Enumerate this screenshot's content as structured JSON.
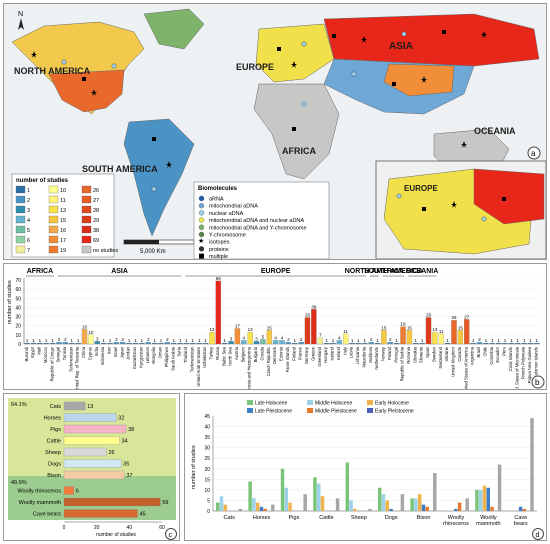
{
  "map": {
    "compass": "N",
    "continents": [
      "NORTH AMERICA",
      "EUROPE",
      "ASIA",
      "AFRICA",
      "SOUTH AMERICA",
      "OCEANIA"
    ],
    "inset_label": "EUROPE",
    "panel_letter": "a",
    "scale_label": "5,000 Km",
    "legend_studies_title": "number of studies",
    "studies_legend": [
      {
        "label": "1",
        "color": "#2d6ea6"
      },
      {
        "label": "2",
        "color": "#4a93c4"
      },
      {
        "label": "3",
        "color": "#2f8cae"
      },
      {
        "label": "4",
        "color": "#62b3cf"
      },
      {
        "label": "5",
        "color": "#6dbfa6"
      },
      {
        "label": "6",
        "color": "#8fd3a5"
      },
      {
        "label": "7",
        "color": "#f4f09a"
      },
      {
        "label": "10",
        "color": "#ffff8f"
      },
      {
        "label": "11",
        "color": "#fff37a"
      },
      {
        "label": "13",
        "color": "#f7e24a"
      },
      {
        "label": "15",
        "color": "#f5c842"
      },
      {
        "label": "16",
        "color": "#f2a94b"
      },
      {
        "label": "17",
        "color": "#f08e3a"
      },
      {
        "label": "19",
        "color": "#ec7c30"
      },
      {
        "label": "26",
        "color": "#e8672a"
      },
      {
        "label": "27",
        "color": "#e55a24"
      },
      {
        "label": "28",
        "color": "#e04a1f"
      },
      {
        "label": "29",
        "color": "#dc3c1c"
      },
      {
        "label": "38",
        "color": "#d92f1a"
      },
      {
        "label": "69",
        "color": "#e8271b"
      },
      {
        "label": "no studies",
        "color": "#c7c7c7"
      }
    ],
    "legend_biomolecules_title": "Biomolecules",
    "biomolecules_legend": [
      {
        "label": "aRNA",
        "symbol": "circle",
        "color": "#1f5fb0"
      },
      {
        "label": "mitochondrial aDNA",
        "symbol": "circle",
        "color": "#6fa8d6"
      },
      {
        "label": "nuclear aDNA",
        "symbol": "circle",
        "color": "#9bd0e8"
      },
      {
        "label": "mitochondrial aDNA and nuclear aDNA",
        "symbol": "circle",
        "color": "#e8e84d"
      },
      {
        "label": "mitochondrial aDNA and Y-chromosome",
        "symbol": "circle",
        "color": "#7db36a"
      },
      {
        "label": "Y-chromosome",
        "symbol": "circle",
        "color": "#5c8a46"
      },
      {
        "label": "isotopes",
        "symbol": "star",
        "color": "#000000"
      },
      {
        "label": "proteins",
        "symbol": "circle-dark",
        "color": "#333333"
      },
      {
        "label": "multiple",
        "symbol": "square",
        "color": "#000000"
      }
    ]
  },
  "chart_data": [
    {
      "type": "bar",
      "panel_letter": "b",
      "ylabel": "number of studies",
      "ylim": [
        0,
        70
      ],
      "yticks": [
        0,
        10,
        20,
        30,
        40,
        50,
        60,
        70
      ],
      "regions": [
        {
          "label": "AFRICA",
          "from": 0,
          "to": 4
        },
        {
          "label": "ASIA",
          "from": 5,
          "to": 24
        },
        {
          "label": "EUROPE",
          "from": 25,
          "to": 53
        },
        {
          "label": "NORTH AMERICA",
          "from": 54,
          "to": 55
        },
        {
          "label": "SOUTH AMERICA",
          "from": 56,
          "to": 59
        },
        {
          "label": "OCEANIA",
          "from": 60,
          "to": 64
        }
      ],
      "categories": [
        "Burundi",
        "Egypt",
        "Mali",
        "Morocco",
        "Republic of Congo",
        "Senegal",
        "Tunisia",
        "Turkmenistan",
        "United Rep. of Tanzania",
        "China",
        "Cyprus",
        "India",
        "Indonesia",
        "Iran",
        "Israel",
        "Japan",
        "Jordan",
        "Kazakhstan",
        "Kyrgyzstan",
        "Lebanon",
        "Mongolia",
        "Oman",
        "Philippines",
        "Saudi Arabia",
        "Syria",
        "Thailand",
        "Turkmenistan",
        "United Arab Emirates",
        "Uzbekistan",
        "Turkey",
        "Russia",
        "Baltic Sea",
        "North Sea",
        "Austria",
        "Belgium",
        "Bosnia and Herzegovina",
        "Bulgaria",
        "Croatia",
        "Czech Republic",
        "Denmark",
        "Estonia",
        "Faroe Islands",
        "Finland",
        "France",
        "Germany",
        "Greece",
        "Greenland",
        "Hungary",
        "Iceland",
        "Ireland",
        "Italy",
        "Latvia",
        "Lithuania",
        "Macedonia",
        "Moldova",
        "Netherlands",
        "Norway",
        "Poland",
        "Portugal",
        "Republic of Serbia",
        "Romania",
        "Slovakia",
        "Slovenia",
        "Spain",
        "Sweden",
        "Switzerland",
        "Ukraine",
        "United Kingdom",
        "Canada",
        "United States of America",
        "Argentina",
        "Brazil",
        "Chile",
        "Colombia",
        "Ecuador",
        "Peru",
        "Cook Islands",
        "Fed. States of Micronesia",
        "French Polynesia",
        "Papua New Guinea",
        "Solomon Islands"
      ],
      "values": [
        1,
        1,
        1,
        1,
        1,
        2,
        2,
        1,
        1,
        16,
        10,
        3,
        1,
        1,
        2,
        2,
        1,
        1,
        1,
        2,
        1,
        1,
        2,
        1,
        1,
        1,
        1,
        1,
        1,
        13,
        69,
        1,
        3,
        17,
        4,
        13,
        3,
        5,
        15,
        4,
        4,
        2,
        1,
        2,
        29,
        38,
        7,
        1,
        1,
        4,
        11,
        1,
        1,
        1,
        2,
        1,
        15,
        2,
        1,
        19,
        15,
        1,
        1,
        29,
        13,
        11,
        1,
        26,
        15,
        27,
        1,
        2,
        1,
        1,
        1,
        1,
        1,
        1,
        1,
        1,
        1
      ]
    },
    {
      "type": "bar",
      "panel_letter": "c",
      "orientation": "horizontal",
      "xlabel": "number of studies",
      "xlim": [
        0,
        60
      ],
      "xticks": [
        0,
        20,
        40,
        60
      ],
      "group_labels": [
        "64.1%",
        "49.9%"
      ],
      "categories": [
        "Cats",
        "Horses",
        "Pigs",
        "Cattle",
        "Sheep",
        "Dogs",
        "Bison",
        "Woolly rhinoceros",
        "Woolly mammoth",
        "Cave bears"
      ],
      "values": [
        13,
        32,
        38,
        34,
        26,
        35,
        37,
        6,
        59,
        45
      ],
      "bar_colors": [
        "#a8a8a8",
        "#b9d6ea",
        "#f7b3c7",
        "#ffff8f",
        "#d9d9d9",
        "#cfe8f3",
        "#f5cba3",
        "#f07b3a",
        "#c0602a",
        "#d66a2e"
      ],
      "group_colors": [
        "#d8e69a",
        "#9ccc8f"
      ]
    },
    {
      "type": "bar",
      "panel_letter": "d",
      "ylabel": "number of studies",
      "ylim": [
        0,
        45
      ],
      "yticks": [
        0,
        5,
        10,
        15,
        20,
        25,
        30,
        35,
        40,
        45
      ],
      "categories": [
        "Cats",
        "Horses",
        "Pigs",
        "Cattle",
        "Sheep",
        "Dogs",
        "Bison",
        "Woolly rhinoceros",
        "Woolly mammoth",
        "Cave bears"
      ],
      "series": [
        {
          "name": "Late Holocene",
          "color": "#7ac47a",
          "values": [
            4,
            14,
            20,
            16,
            23,
            11,
            6,
            0,
            10,
            0
          ]
        },
        {
          "name": "Middle Holocene",
          "color": "#9dd1ea",
          "values": [
            7,
            6,
            11,
            13,
            5,
            8,
            6,
            0,
            10,
            0
          ]
        },
        {
          "name": "Early Holocene",
          "color": "#f0b24a",
          "values": [
            3,
            4,
            4,
            7,
            1,
            5,
            8,
            0,
            12,
            0
          ]
        },
        {
          "name": "Late Pleistocene",
          "color": "#3e7fc7",
          "values": [
            0,
            2,
            0,
            0,
            0,
            1,
            3,
            1,
            11,
            2
          ]
        },
        {
          "name": "Middle Pleistocene",
          "color": "#e7792e",
          "values": [
            0,
            1,
            0,
            0,
            0,
            0,
            2,
            4,
            2,
            1
          ]
        },
        {
          "name": "Early Pleistocene",
          "color": "#4b5fb8",
          "values": [
            0,
            0,
            0,
            0,
            0,
            0,
            0,
            0,
            0,
            0
          ]
        },
        {
          "name": "_grey",
          "color": "#a6a6a6",
          "values": [
            1,
            3,
            8,
            6,
            1,
            8,
            18,
            6,
            22,
            44
          ]
        }
      ],
      "legend": [
        "Late Holocene",
        "Middle Holocene",
        "Early Holocene",
        "Late Pleistocene",
        "Middle Pleistocene",
        "Early Pleistocene"
      ]
    }
  ]
}
